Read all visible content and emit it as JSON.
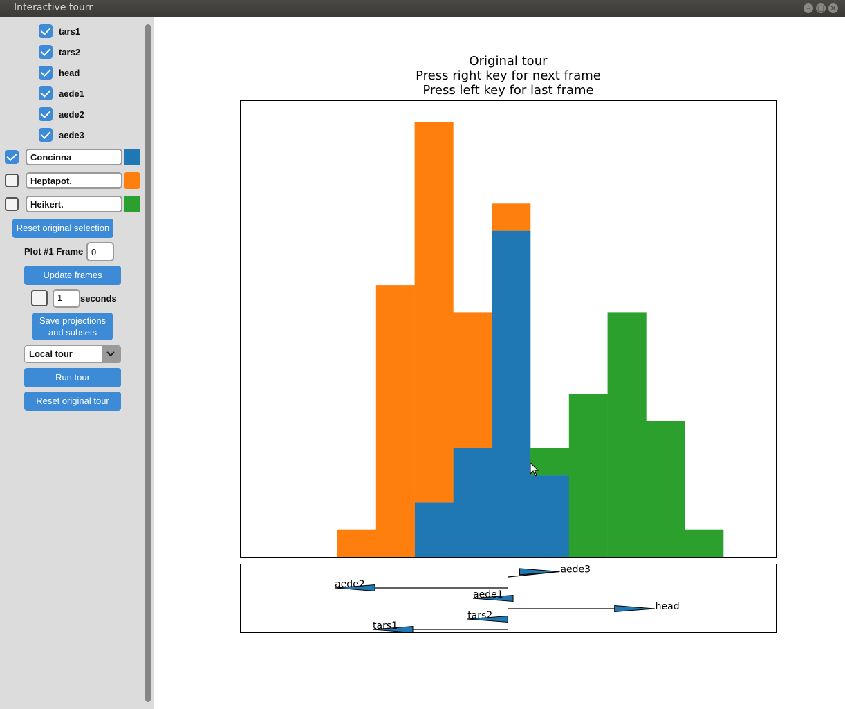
{
  "window": {
    "title": "Interactive tourr",
    "buttons": [
      "minimize-icon",
      "maximize-icon",
      "close-icon"
    ]
  },
  "sidebar": {
    "variables": [
      {
        "label": "tars1",
        "checked": true
      },
      {
        "label": "tars2",
        "checked": true
      },
      {
        "label": "head",
        "checked": true
      },
      {
        "label": "aede1",
        "checked": true
      },
      {
        "label": "aede2",
        "checked": true
      },
      {
        "label": "aede3",
        "checked": true
      }
    ],
    "groups": [
      {
        "label": "Concinna",
        "checked": true,
        "color": "#1f77b4"
      },
      {
        "label": "Heptapot.",
        "checked": false,
        "color": "#ff7f0e"
      },
      {
        "label": "Heikert.",
        "checked": false,
        "color": "#2ca02c"
      }
    ],
    "reset_selection_label": "Reset original selection",
    "frame_label": "Plot #1 Frame",
    "frame_value": "0",
    "update_frames_label": "Update frames",
    "animate_checked": false,
    "seconds_value": "1",
    "seconds_label": "seconds",
    "save_label_line1": "Save projections",
    "save_label_line2": "and subsets",
    "tour_type": "Local tour",
    "run_tour_label": "Run tour",
    "reset_tour_label": "Reset original tour"
  },
  "plot": {
    "title_lines": [
      "Original tour",
      "Press right key for next frame",
      "Press left key for last frame"
    ]
  },
  "chart_data": {
    "type": "bar",
    "stacked": true,
    "bins": 10,
    "series": [
      {
        "name": "Concinna",
        "color": "#1f77b4",
        "values": [
          0,
          0,
          2,
          4,
          12,
          3,
          0,
          0,
          0,
          0
        ]
      },
      {
        "name": "Heptapot.",
        "color": "#ff7f0e",
        "values": [
          1,
          10,
          14,
          5,
          1,
          0,
          0,
          0,
          0,
          0
        ]
      },
      {
        "name": "Heikert.",
        "color": "#2ca02c",
        "values": [
          0,
          0,
          0,
          0,
          0,
          1,
          6,
          9,
          5,
          1
        ]
      }
    ],
    "ylim": [
      0,
      16.8
    ],
    "axes_view": {
      "type": "projection-axes",
      "variables": [
        {
          "name": "aede3",
          "dx": 0.19,
          "dy": 0.06
        },
        {
          "name": "aede2",
          "dx": -0.64,
          "dy": 0.0
        },
        {
          "name": "aede1",
          "dx": -0.13,
          "dy": 0.0
        },
        {
          "name": "head",
          "dx": 0.54,
          "dy": 0.0
        },
        {
          "name": "tars2",
          "dx": -0.15,
          "dy": 0.0
        },
        {
          "name": "tars1",
          "dx": -0.5,
          "dy": 0.0
        }
      ]
    }
  }
}
